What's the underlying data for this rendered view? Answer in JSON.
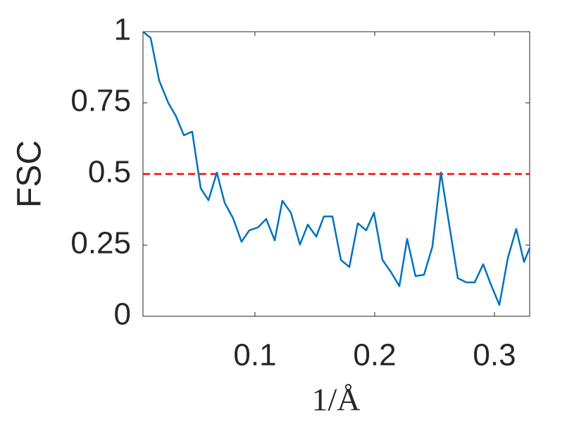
{
  "chart_data": {
    "type": "line",
    "xlabel": "1/Å",
    "ylabel": "FSC",
    "x": [
      0.0065,
      0.0129,
      0.02,
      0.0276,
      0.0341,
      0.0406,
      0.0476,
      0.0547,
      0.0612,
      0.0682,
      0.0747,
      0.0818,
      0.0888,
      0.0953,
      0.1024,
      0.1094,
      0.1165,
      0.1229,
      0.13,
      0.1376,
      0.1441,
      0.1512,
      0.1576,
      0.1647,
      0.1718,
      0.1788,
      0.1859,
      0.1929,
      0.1994,
      0.2065,
      0.2135,
      0.2206,
      0.2271,
      0.2341,
      0.2412,
      0.2482,
      0.2553,
      0.2624,
      0.2694,
      0.2765,
      0.2835,
      0.2906,
      0.2971,
      0.3041,
      0.3112,
      0.3182,
      0.3247,
      0.3294
    ],
    "series": [
      {
        "color": "#0072bd",
        "values": [
          1.0,
          0.978,
          0.829,
          0.75,
          0.703,
          0.636,
          0.649,
          0.45,
          0.408,
          0.505,
          0.399,
          0.344,
          0.262,
          0.302,
          0.312,
          0.342,
          0.267,
          0.406,
          0.364,
          0.252,
          0.322,
          0.28,
          0.351,
          0.351,
          0.198,
          0.173,
          0.327,
          0.302,
          0.364,
          0.198,
          0.156,
          0.106,
          0.272,
          0.141,
          0.146,
          0.245,
          0.505,
          0.317,
          0.134,
          0.119,
          0.119,
          0.183,
          0.111,
          0.04,
          0.205,
          0.307,
          0.191,
          0.24
        ]
      }
    ],
    "threshold": {
      "value": 0.5,
      "color": "#ff0000"
    },
    "xlim": [
      0.0065,
      0.3294
    ],
    "xticks": [
      0.1,
      0.2,
      0.3
    ],
    "ylim": [
      0,
      1
    ],
    "yticks": [
      0,
      0.25,
      0.5,
      0.75,
      1
    ]
  }
}
